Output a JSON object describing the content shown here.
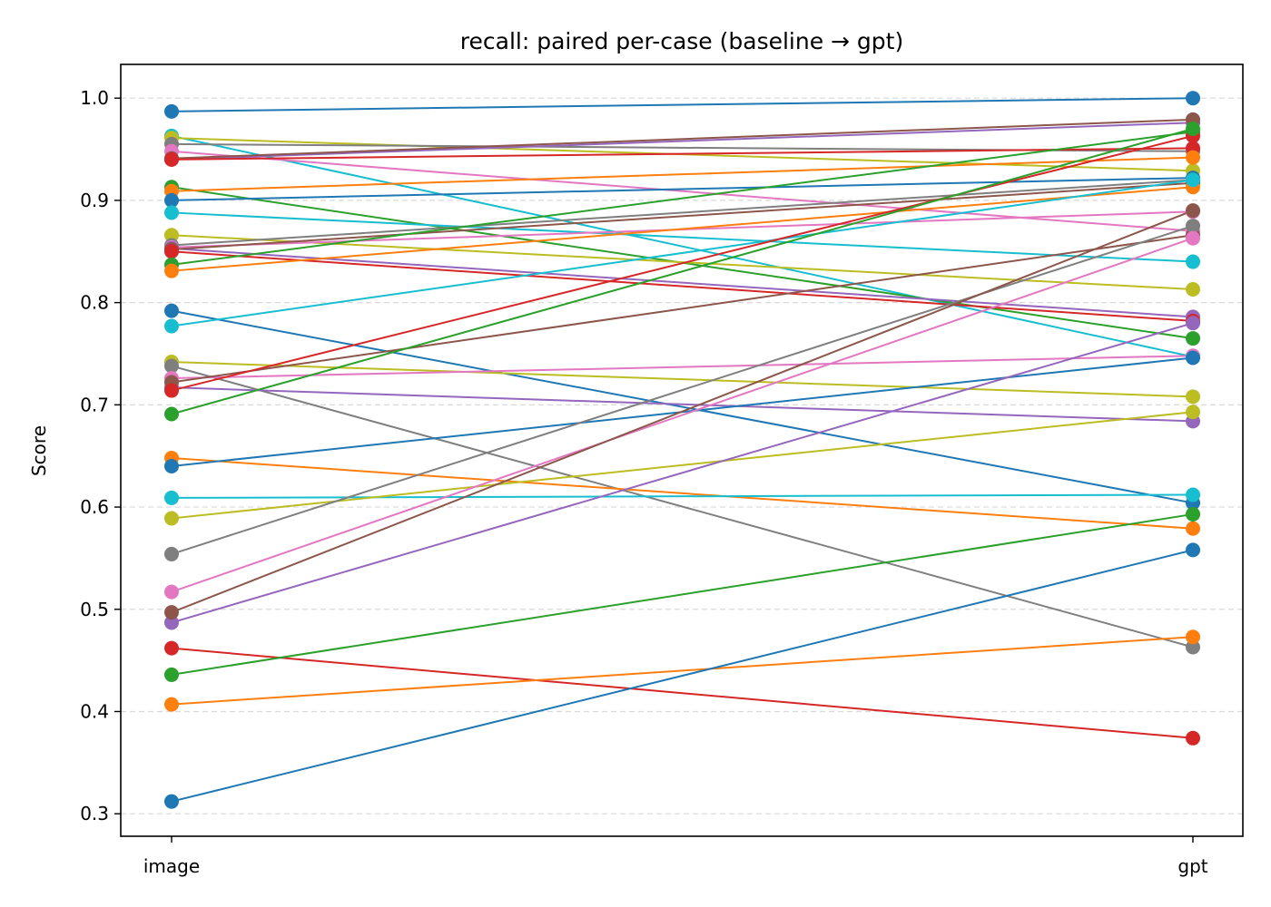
{
  "chart_data": {
    "type": "line",
    "title": "recall: paired per-case (baseline → gpt)",
    "xlabel": "",
    "ylabel": "Score",
    "categories": [
      "image",
      "gpt"
    ],
    "ylim": [
      0.278,
      1.033
    ],
    "yticks": [
      "0.3",
      "0.4",
      "0.5",
      "0.6",
      "0.7",
      "0.8",
      "0.9",
      "1.0"
    ],
    "grid": "horizontal dashed",
    "legend": "none",
    "series": [
      {
        "values": [
          0.987,
          1.0
        ],
        "color": "#1f77b4"
      },
      {
        "values": [
          0.963,
          0.747
        ],
        "color": "#17becf"
      },
      {
        "values": [
          0.961,
          0.929
        ],
        "color": "#bcbd22"
      },
      {
        "values": [
          0.955,
          0.948
        ],
        "color": "#7f7f7f"
      },
      {
        "values": [
          0.948,
          0.87
        ],
        "color": "#e377c2"
      },
      {
        "values": [
          0.94,
          0.976
        ],
        "color": "#9467bd"
      },
      {
        "values": [
          0.941,
          0.979
        ],
        "color": "#8c564b"
      },
      {
        "values": [
          0.94,
          0.951
        ],
        "color": "#d62728"
      },
      {
        "values": [
          0.913,
          0.765
        ],
        "color": "#2ca02c"
      },
      {
        "values": [
          0.909,
          0.942
        ],
        "color": "#ff7f0e"
      },
      {
        "values": [
          0.9,
          0.922
        ],
        "color": "#1f77b4"
      },
      {
        "values": [
          0.888,
          0.84
        ],
        "color": "#17becf"
      },
      {
        "values": [
          0.866,
          0.813
        ],
        "color": "#bcbd22"
      },
      {
        "values": [
          0.856,
          0.92
        ],
        "color": "#7f7f7f"
      },
      {
        "values": [
          0.854,
          0.889
        ],
        "color": "#e377c2"
      },
      {
        "values": [
          0.853,
          0.786
        ],
        "color": "#9467bd"
      },
      {
        "values": [
          0.852,
          0.917
        ],
        "color": "#8c564b"
      },
      {
        "values": [
          0.85,
          0.782
        ],
        "color": "#d62728"
      },
      {
        "values": [
          0.837,
          0.967
        ],
        "color": "#2ca02c"
      },
      {
        "values": [
          0.831,
          0.913
        ],
        "color": "#ff7f0e"
      },
      {
        "values": [
          0.792,
          0.604
        ],
        "color": "#1f77b4"
      },
      {
        "values": [
          0.777,
          0.92
        ],
        "color": "#17becf"
      },
      {
        "values": [
          0.742,
          0.708
        ],
        "color": "#bcbd22"
      },
      {
        "values": [
          0.738,
          0.463
        ],
        "color": "#7f7f7f"
      },
      {
        "values": [
          0.726,
          0.748
        ],
        "color": "#e377c2"
      },
      {
        "values": [
          0.717,
          0.684
        ],
        "color": "#9467bd"
      },
      {
        "values": [
          0.722,
          0.866
        ],
        "color": "#8c564b"
      },
      {
        "values": [
          0.714,
          0.963
        ],
        "color": "#d62728"
      },
      {
        "values": [
          0.691,
          0.97
        ],
        "color": "#2ca02c"
      },
      {
        "values": [
          0.648,
          0.579
        ],
        "color": "#ff7f0e"
      },
      {
        "values": [
          0.64,
          0.746
        ],
        "color": "#1f77b4"
      },
      {
        "values": [
          0.609,
          0.612
        ],
        "color": "#17becf"
      },
      {
        "values": [
          0.589,
          0.693
        ],
        "color": "#bcbd22"
      },
      {
        "values": [
          0.554,
          0.875
        ],
        "color": "#7f7f7f"
      },
      {
        "values": [
          0.517,
          0.863
        ],
        "color": "#e377c2"
      },
      {
        "values": [
          0.487,
          0.78
        ],
        "color": "#9467bd"
      },
      {
        "values": [
          0.497,
          0.89
        ],
        "color": "#8c564b"
      },
      {
        "values": [
          0.462,
          0.374
        ],
        "color": "#d62728"
      },
      {
        "values": [
          0.436,
          0.593
        ],
        "color": "#2ca02c"
      },
      {
        "values": [
          0.407,
          0.473
        ],
        "color": "#ff7f0e"
      },
      {
        "values": [
          0.312,
          0.558
        ],
        "color": "#1f77b4"
      }
    ]
  }
}
